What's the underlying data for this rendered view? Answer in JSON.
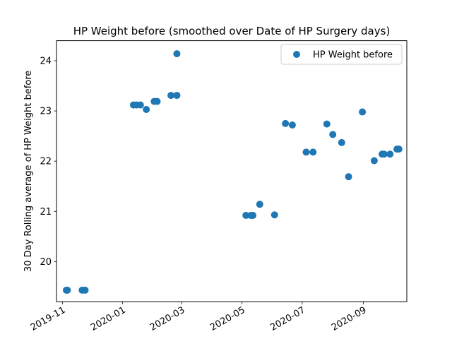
{
  "chart_data": {
    "type": "scatter",
    "title": "HP Weight before (smoothed over Date of HP Surgery days)",
    "xlabel": "",
    "ylabel": "30 Day Rolling average of HP Weight before",
    "x_is_date": true,
    "xlim": [
      "2019-10-26",
      "2020-10-15"
    ],
    "ylim": [
      19.2,
      24.4
    ],
    "x_ticks": [
      "2019-11",
      "2020-01",
      "2020-03",
      "2020-05",
      "2020-07",
      "2020-09"
    ],
    "x_tick_dates": [
      "2019-11-01",
      "2020-01-01",
      "2020-03-01",
      "2020-05-01",
      "2020-07-01",
      "2020-09-01"
    ],
    "y_ticks": [
      20,
      21,
      22,
      23,
      24
    ],
    "grid": false,
    "legend_position": "top-right",
    "series": [
      {
        "name": "HP Weight before",
        "color": "#1f77b4",
        "points": [
          {
            "x": "2019-11-05",
            "y": 19.43
          },
          {
            "x": "2019-11-06",
            "y": 19.43
          },
          {
            "x": "2019-11-21",
            "y": 19.43
          },
          {
            "x": "2019-11-24",
            "y": 19.43
          },
          {
            "x": "2020-01-12",
            "y": 23.12
          },
          {
            "x": "2020-01-15",
            "y": 23.12
          },
          {
            "x": "2020-01-19",
            "y": 23.12
          },
          {
            "x": "2020-01-25",
            "y": 23.03
          },
          {
            "x": "2020-02-02",
            "y": 23.19
          },
          {
            "x": "2020-02-05",
            "y": 23.19
          },
          {
            "x": "2020-02-19",
            "y": 23.31
          },
          {
            "x": "2020-02-25",
            "y": 23.31
          },
          {
            "x": "2020-02-25",
            "y": 24.14
          },
          {
            "x": "2020-05-05",
            "y": 20.92
          },
          {
            "x": "2020-05-10",
            "y": 20.92
          },
          {
            "x": "2020-05-12",
            "y": 20.92
          },
          {
            "x": "2020-05-19",
            "y": 21.14
          },
          {
            "x": "2020-06-03",
            "y": 20.93
          },
          {
            "x": "2020-06-14",
            "y": 22.75
          },
          {
            "x": "2020-06-21",
            "y": 22.72
          },
          {
            "x": "2020-07-05",
            "y": 22.18
          },
          {
            "x": "2020-07-12",
            "y": 22.18
          },
          {
            "x": "2020-07-26",
            "y": 22.74
          },
          {
            "x": "2020-08-01",
            "y": 22.53
          },
          {
            "x": "2020-08-10",
            "y": 22.37
          },
          {
            "x": "2020-08-17",
            "y": 21.69
          },
          {
            "x": "2020-08-31",
            "y": 22.98
          },
          {
            "x": "2020-09-12",
            "y": 22.01
          },
          {
            "x": "2020-09-20",
            "y": 22.14
          },
          {
            "x": "2020-09-22",
            "y": 22.14
          },
          {
            "x": "2020-09-28",
            "y": 22.14
          },
          {
            "x": "2020-10-05",
            "y": 22.24
          },
          {
            "x": "2020-10-07",
            "y": 22.24
          }
        ]
      }
    ]
  }
}
